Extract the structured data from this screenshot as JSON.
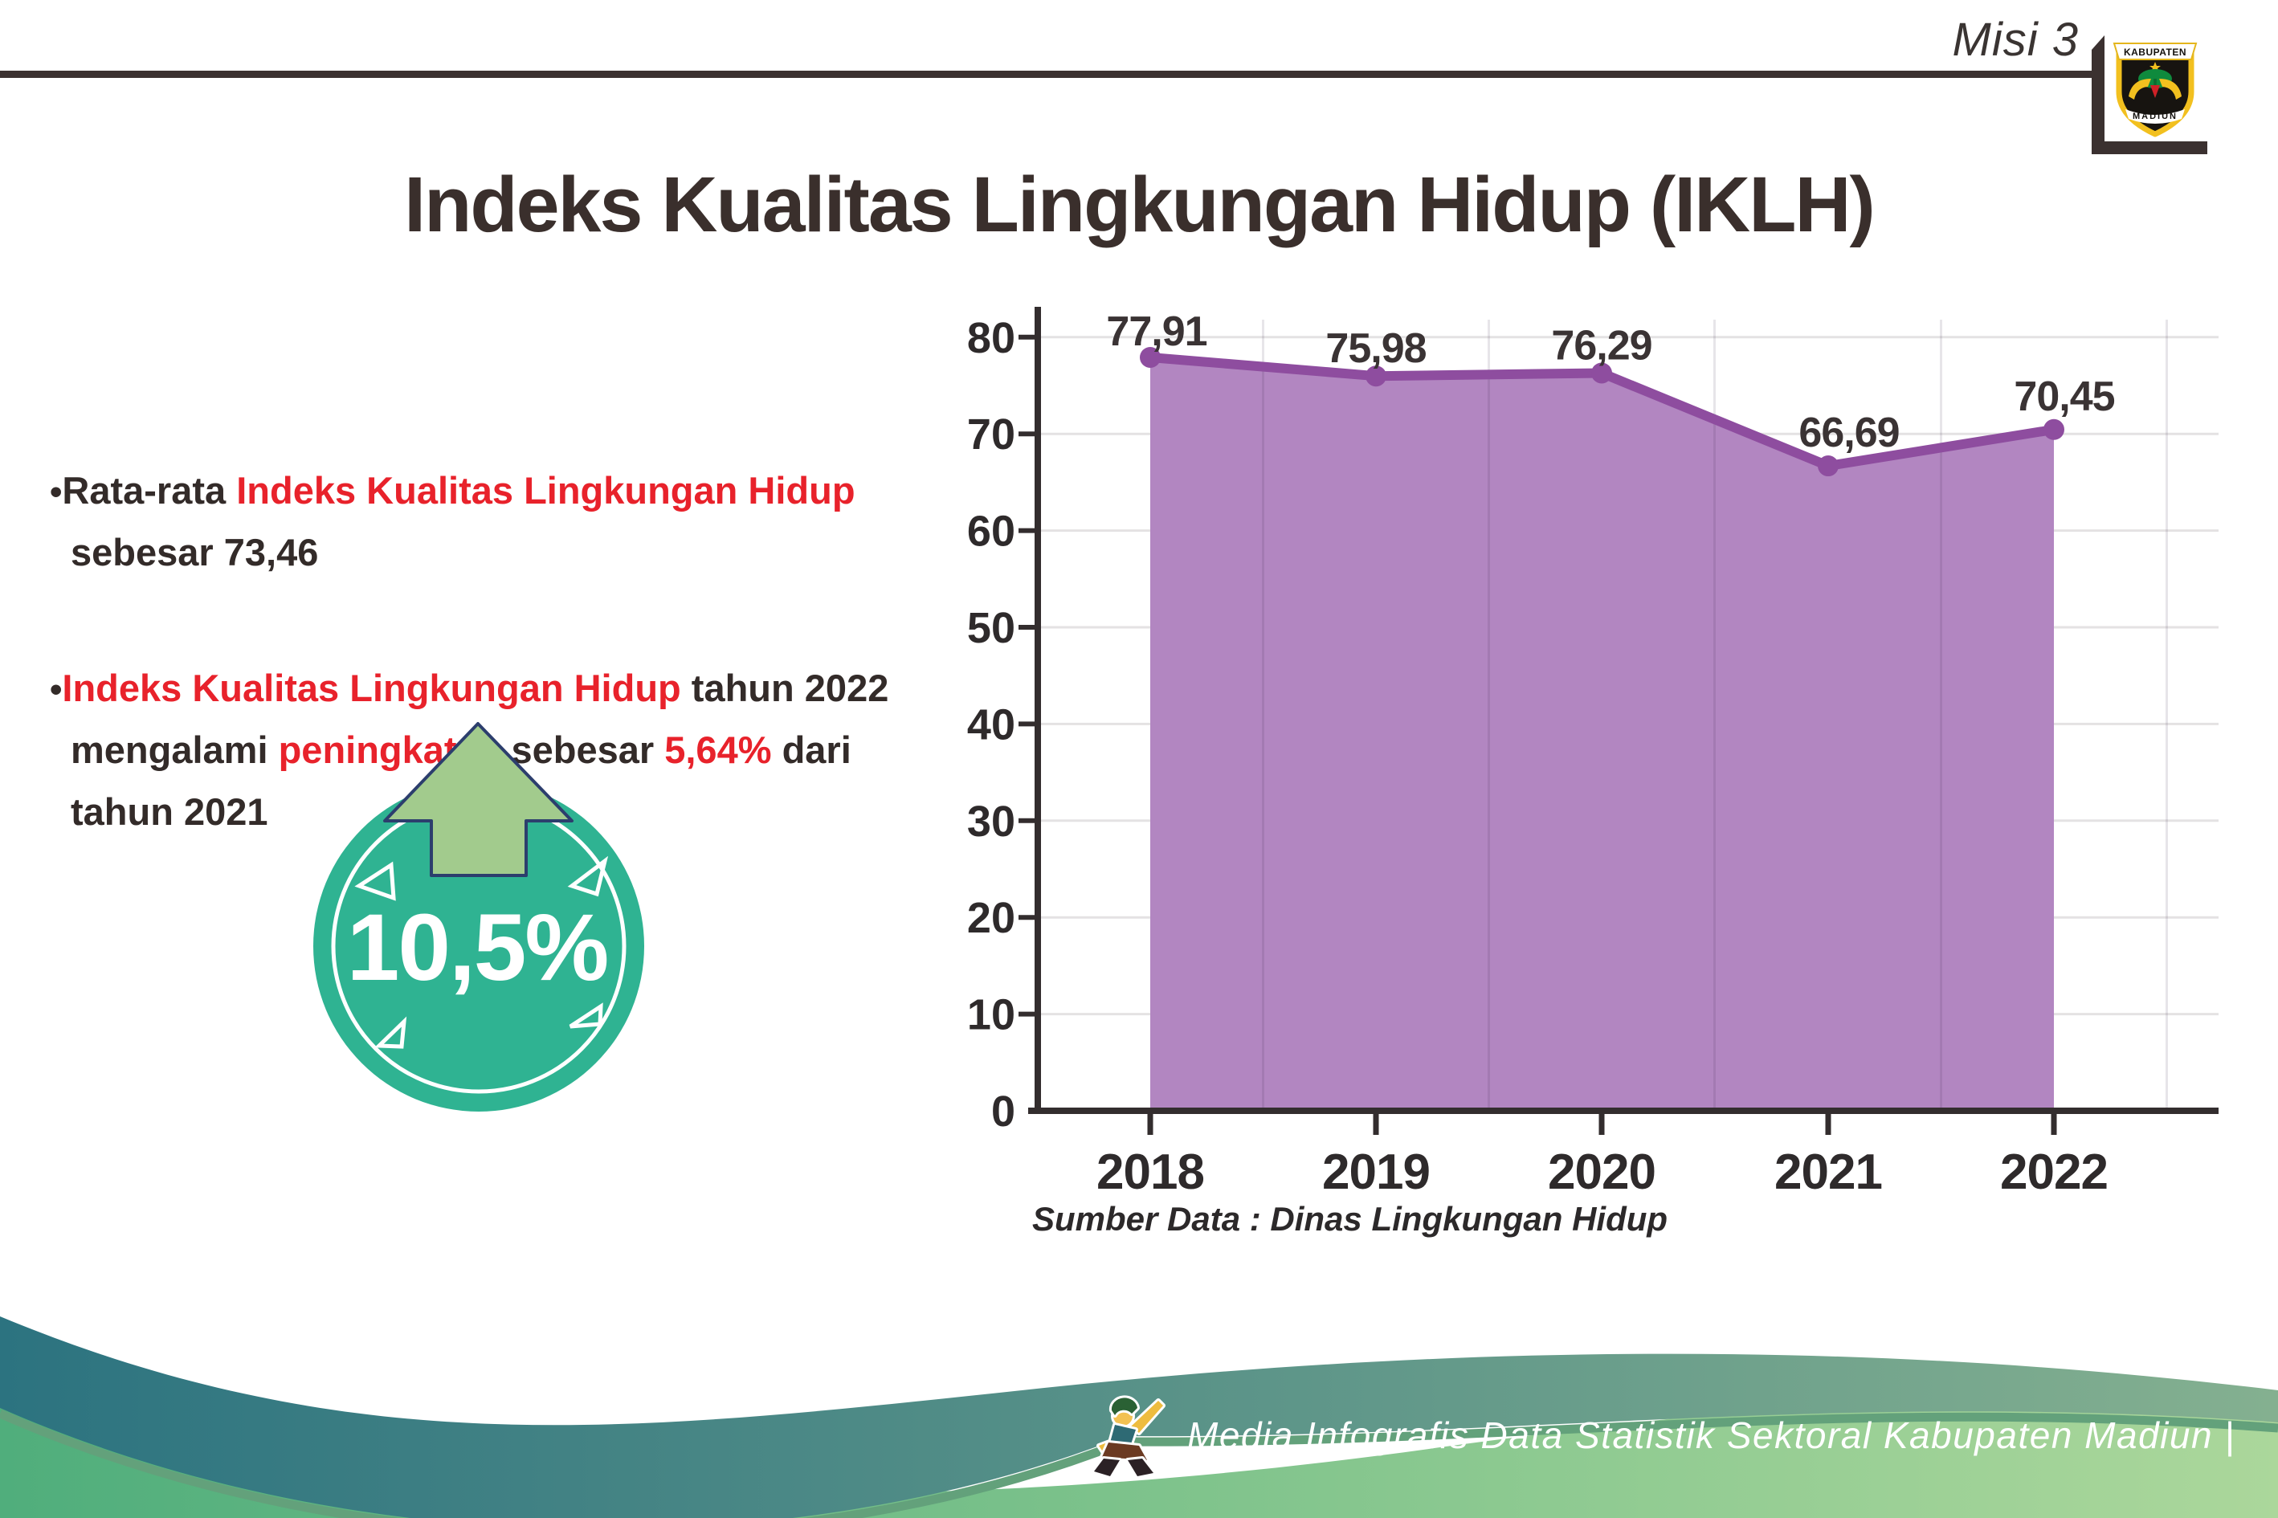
{
  "header": {
    "misi_label": "Misi 3",
    "title": "Indeks Kualitas Lingkungan Hidup (IKLH)",
    "rule_color": "#3b3130"
  },
  "logo": {
    "name": "kabupaten-madiun-emblem",
    "arc_text": "KABUPATEN",
    "bottom_text": "MADIUN",
    "shield_color": "#171410",
    "border_color": "#f2c01f"
  },
  "bullets": [
    {
      "segments": [
        {
          "text": "Rata-rata ",
          "red": false
        },
        {
          "text": "Indeks Kualitas Lingkungan Hidup",
          "red": true
        },
        {
          "text": " sebesar 73,46",
          "red": false
        }
      ]
    },
    {
      "segments": [
        {
          "text": "Indeks Kualitas Lingkungan Hidup",
          "red": true
        },
        {
          "text": " tahun 2022 mengalami ",
          "red": false
        },
        {
          "text": "peningkatan",
          "red": true
        },
        {
          "text": " sebesar ",
          "red": false
        },
        {
          "text": "5,64%",
          "red": true
        },
        {
          "text": " dari tahun 2021",
          "red": false
        }
      ]
    }
  ],
  "badge": {
    "value": "10,5%",
    "circle_color": "#2fb392",
    "ring_color": "#ffffff",
    "arrow_color": "#a2cb8d",
    "arrow_outline_color": "#2c3e6d",
    "value_color": "#ffffff"
  },
  "chart_data": {
    "type": "area",
    "title": "",
    "xlabel": "",
    "ylabel": "",
    "categories": [
      "2018",
      "2019",
      "2020",
      "2021",
      "2022"
    ],
    "values": [
      77.91,
      75.98,
      76.29,
      66.69,
      70.45
    ],
    "value_labels": [
      "77,91",
      "75,98",
      "76,29",
      "66,69",
      "70,45"
    ],
    "yticks": [
      0,
      10,
      20,
      30,
      40,
      50,
      60,
      70,
      80
    ],
    "ylim": [
      0,
      85
    ],
    "grid": true,
    "legend_position": "none",
    "fill_color": "#b286c1",
    "line_color": "#8e4d9f",
    "point_color": "#8e4d9f",
    "grid_color": "#e4e2e3",
    "grid_over_color": "rgba(60,40,70,0.12)",
    "axis_color": "#332d2e",
    "value_label_color": "#3a3334",
    "tick_label_color": "#2e2a2b"
  },
  "source_note": "Sumber Data : Dinas Lingkungan Hidup",
  "footer": {
    "text": "Media Infografis Data Statistik Sektoral Kabupaten Madiun |",
    "teal_left": "#2c7380",
    "teal_right": "#84b090",
    "green_left": "#50ae7c",
    "green_right": "#abd79b",
    "edge_color": "#63a17b"
  },
  "accent_colors": {
    "red": "#e8222b",
    "text_black": "#332b29",
    "dark_brown": "#3a302c"
  }
}
